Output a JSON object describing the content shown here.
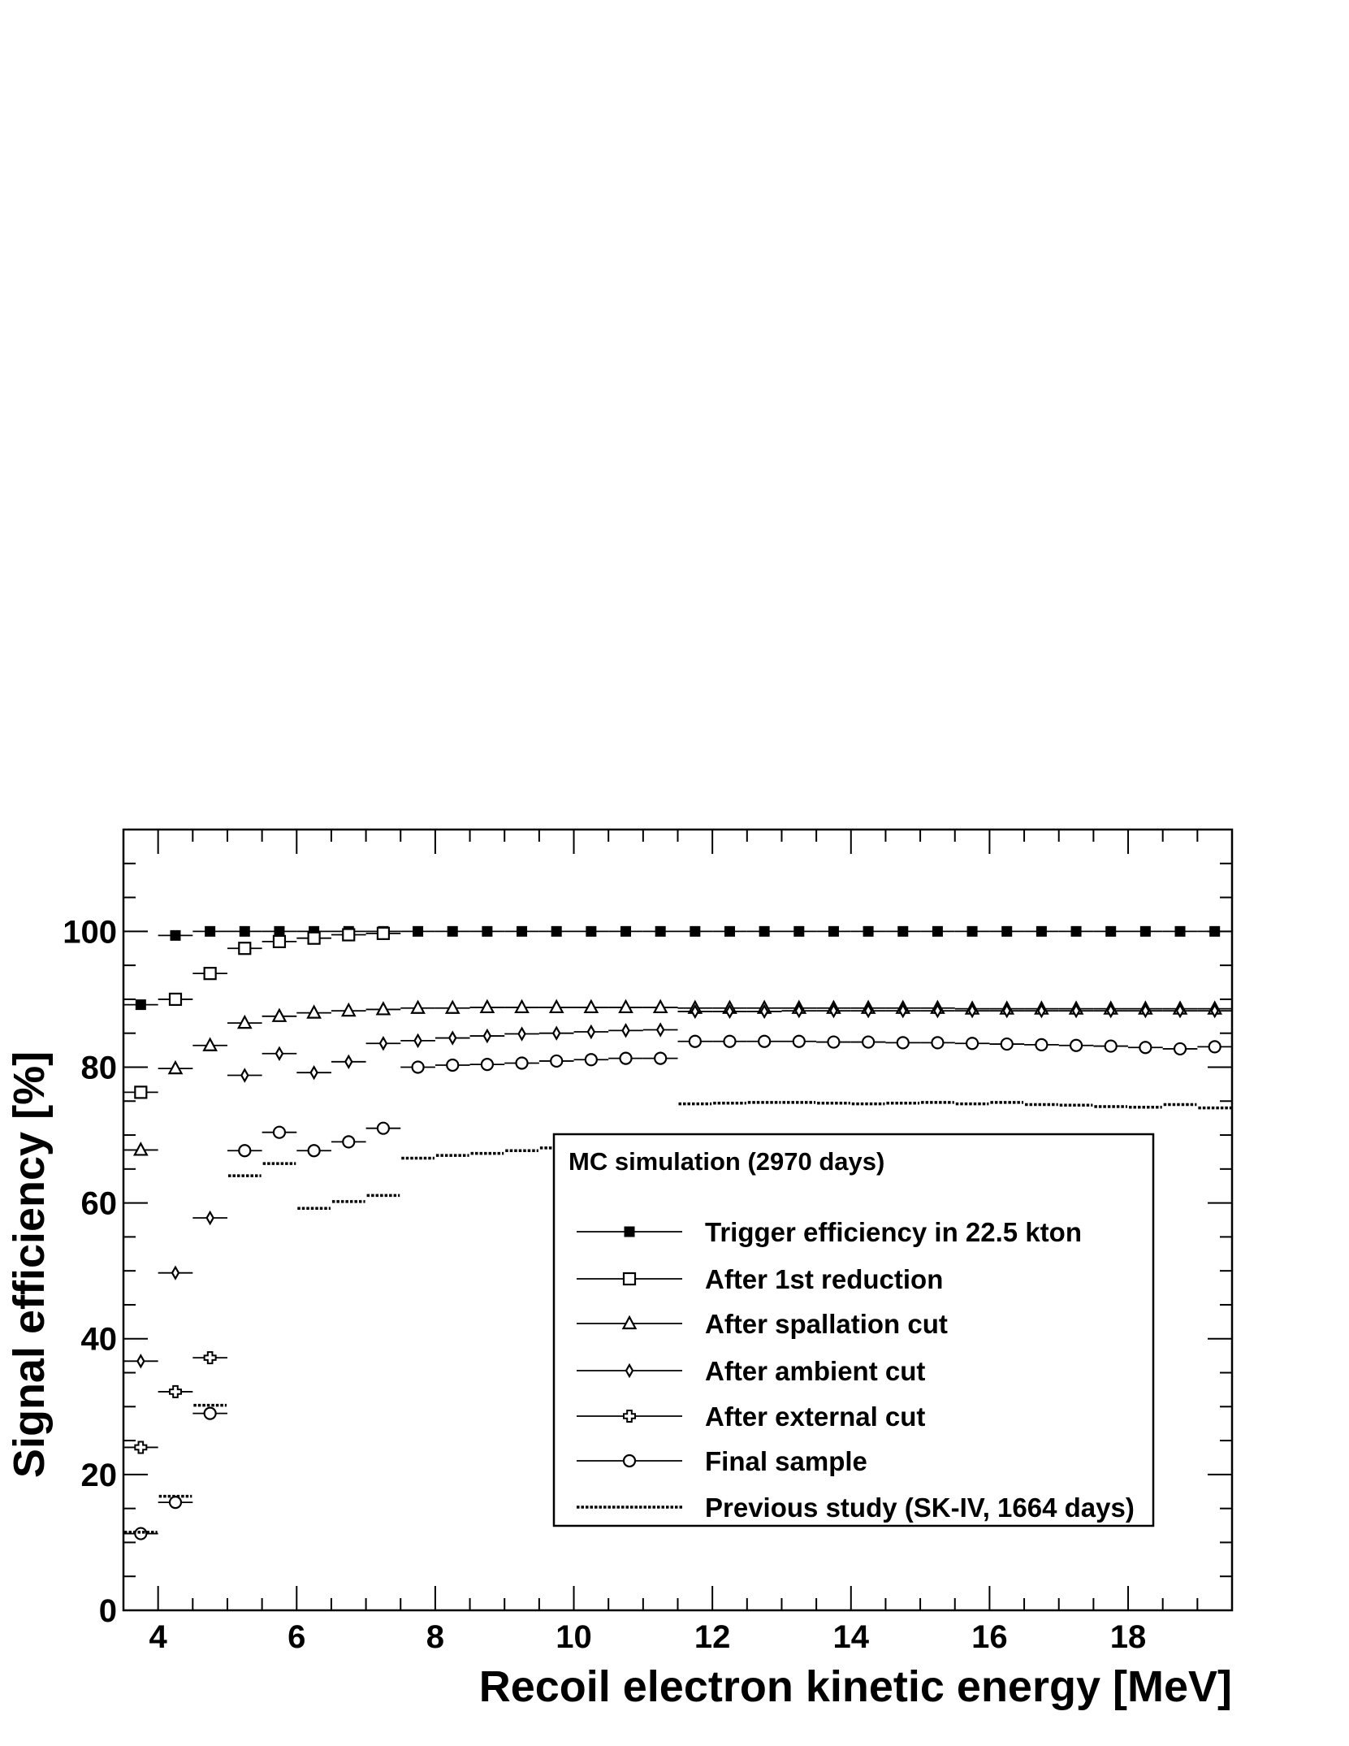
{
  "chart_data": {
    "type": "scatter",
    "xlabel": "Recoil electron kinetic energy [MeV]",
    "ylabel": "Signal efficiency [%]",
    "xlim": [
      3.5,
      19.5
    ],
    "ylim": [
      0,
      115
    ],
    "x_ticks": [
      4,
      6,
      8,
      10,
      12,
      14,
      16,
      18
    ],
    "y_ticks": [
      0,
      20,
      40,
      60,
      80,
      100
    ],
    "grid": false,
    "legend": {
      "title": "MC simulation (2970 days)",
      "placement": "lower-right"
    },
    "series": [
      {
        "name": "Trigger efficiency in 22.5 kton",
        "marker": "filled-square",
        "line": "solid",
        "bins": [
          [
            3.5,
            4.0
          ],
          [
            4.0,
            4.5
          ],
          [
            4.5,
            5.0
          ],
          [
            5.0,
            5.5
          ],
          [
            5.5,
            6.0
          ],
          [
            6.0,
            6.5
          ],
          [
            6.5,
            7.0
          ],
          [
            7.0,
            7.5
          ],
          [
            7.5,
            8.0
          ],
          [
            8.0,
            8.5
          ],
          [
            8.5,
            9.0
          ],
          [
            9.0,
            9.5
          ],
          [
            9.5,
            10.0
          ],
          [
            10.0,
            10.5
          ],
          [
            10.5,
            11.0
          ],
          [
            11.0,
            11.5
          ],
          [
            11.5,
            12.0
          ],
          [
            12.0,
            12.5
          ],
          [
            12.5,
            13.0
          ],
          [
            13.0,
            13.5
          ],
          [
            13.5,
            14.0
          ],
          [
            14.0,
            14.5
          ],
          [
            14.5,
            15.0
          ],
          [
            15.0,
            15.5
          ],
          [
            15.5,
            16.0
          ],
          [
            16.0,
            16.5
          ],
          [
            16.5,
            17.0
          ],
          [
            17.0,
            17.5
          ],
          [
            17.5,
            18.0
          ],
          [
            18.0,
            18.5
          ],
          [
            18.5,
            19.0
          ],
          [
            19.0,
            19.5
          ]
        ],
        "values": [
          89.2,
          99.4,
          100,
          100,
          100,
          100,
          100,
          100,
          100,
          100,
          100,
          100,
          100,
          100,
          100,
          100,
          100,
          100,
          100,
          100,
          100,
          100,
          100,
          100,
          100,
          100,
          100,
          100,
          100,
          100,
          100,
          100
        ]
      },
      {
        "name": "After 1st reduction",
        "marker": "open-square",
        "line": "solid",
        "bins": [
          [
            3.5,
            4.0
          ],
          [
            4.0,
            4.5
          ],
          [
            4.5,
            5.0
          ],
          [
            5.0,
            5.5
          ],
          [
            5.5,
            6.0
          ],
          [
            6.0,
            6.5
          ],
          [
            6.5,
            7.0
          ],
          [
            7.0,
            7.5
          ]
        ],
        "values": [
          76.3,
          90.0,
          93.8,
          97.5,
          98.5,
          99.0,
          99.5,
          99.7
        ]
      },
      {
        "name": "After spallation cut",
        "marker": "open-triangle",
        "line": "solid",
        "bins": [
          [
            3.5,
            4.0
          ],
          [
            4.0,
            4.5
          ],
          [
            4.5,
            5.0
          ],
          [
            5.0,
            5.5
          ],
          [
            5.5,
            6.0
          ],
          [
            6.0,
            6.5
          ],
          [
            6.5,
            7.0
          ],
          [
            7.0,
            7.5
          ],
          [
            7.5,
            8.0
          ],
          [
            8.0,
            8.5
          ],
          [
            8.5,
            9.0
          ],
          [
            9.0,
            9.5
          ],
          [
            9.5,
            10.0
          ],
          [
            10.0,
            10.5
          ],
          [
            10.5,
            11.0
          ],
          [
            11.0,
            11.5
          ],
          [
            11.5,
            12.0
          ],
          [
            12.0,
            12.5
          ],
          [
            12.5,
            13.0
          ],
          [
            13.0,
            13.5
          ],
          [
            13.5,
            14.0
          ],
          [
            14.0,
            14.5
          ],
          [
            14.5,
            15.0
          ],
          [
            15.0,
            15.5
          ],
          [
            15.5,
            16.0
          ],
          [
            16.0,
            16.5
          ],
          [
            16.5,
            17.0
          ],
          [
            17.0,
            17.5
          ],
          [
            17.5,
            18.0
          ],
          [
            18.0,
            18.5
          ],
          [
            18.5,
            19.0
          ],
          [
            19.0,
            19.5
          ]
        ],
        "values": [
          67.8,
          79.8,
          83.2,
          86.5,
          87.5,
          88.0,
          88.3,
          88.5,
          88.7,
          88.7,
          88.8,
          88.8,
          88.8,
          88.8,
          88.8,
          88.8,
          88.7,
          88.7,
          88.7,
          88.7,
          88.7,
          88.7,
          88.7,
          88.7,
          88.6,
          88.6,
          88.6,
          88.6,
          88.6,
          88.6,
          88.6,
          88.6
        ]
      },
      {
        "name": "After ambient cut",
        "marker": "open-diamond",
        "line": "solid",
        "bins": [
          [
            3.5,
            4.0
          ],
          [
            4.0,
            4.5
          ],
          [
            4.5,
            5.0
          ],
          [
            5.0,
            5.5
          ],
          [
            5.5,
            6.0
          ],
          [
            6.0,
            6.5
          ],
          [
            6.5,
            7.0
          ],
          [
            7.0,
            7.5
          ],
          [
            7.5,
            8.0
          ],
          [
            8.0,
            8.5
          ],
          [
            8.5,
            9.0
          ],
          [
            9.0,
            9.5
          ],
          [
            9.5,
            10.0
          ],
          [
            10.0,
            10.5
          ],
          [
            10.5,
            11.0
          ],
          [
            11.0,
            11.5
          ],
          [
            11.5,
            12.0
          ],
          [
            12.0,
            12.5
          ],
          [
            12.5,
            13.0
          ],
          [
            13.0,
            13.5
          ],
          [
            13.5,
            14.0
          ],
          [
            14.0,
            14.5
          ],
          [
            14.5,
            15.0
          ],
          [
            15.0,
            15.5
          ],
          [
            15.5,
            16.0
          ],
          [
            16.0,
            16.5
          ],
          [
            16.5,
            17.0
          ],
          [
            17.0,
            17.5
          ],
          [
            17.5,
            18.0
          ],
          [
            18.0,
            18.5
          ],
          [
            18.5,
            19.0
          ],
          [
            19.0,
            19.5
          ]
        ],
        "values": [
          36.7,
          49.7,
          57.8,
          78.8,
          82.0,
          79.2,
          80.8,
          83.5,
          83.9,
          84.3,
          84.6,
          84.9,
          85.0,
          85.2,
          85.4,
          85.5,
          88.2,
          88.2,
          88.2,
          88.3,
          88.3,
          88.3,
          88.3,
          88.3,
          88.3,
          88.3,
          88.3,
          88.3,
          88.3,
          88.3,
          88.3,
          88.3
        ]
      },
      {
        "name": "After external cut",
        "marker": "open-cross",
        "line": "solid",
        "bins": [
          [
            3.5,
            4.0
          ],
          [
            4.0,
            4.5
          ],
          [
            4.5,
            5.0
          ]
        ],
        "values": [
          24.0,
          32.2,
          37.2
        ]
      },
      {
        "name": "Final sample",
        "marker": "open-circle",
        "line": "solid",
        "bins": [
          [
            3.5,
            4.0
          ],
          [
            4.0,
            4.5
          ],
          [
            4.5,
            5.0
          ],
          [
            5.0,
            5.5
          ],
          [
            5.5,
            6.0
          ],
          [
            6.0,
            6.5
          ],
          [
            6.5,
            7.0
          ],
          [
            7.0,
            7.5
          ],
          [
            7.5,
            8.0
          ],
          [
            8.0,
            8.5
          ],
          [
            8.5,
            9.0
          ],
          [
            9.0,
            9.5
          ],
          [
            9.5,
            10.0
          ],
          [
            10.0,
            10.5
          ],
          [
            10.5,
            11.0
          ],
          [
            11.0,
            11.5
          ],
          [
            11.5,
            12.0
          ],
          [
            12.0,
            12.5
          ],
          [
            12.5,
            13.0
          ],
          [
            13.0,
            13.5
          ],
          [
            13.5,
            14.0
          ],
          [
            14.0,
            14.5
          ],
          [
            14.5,
            15.0
          ],
          [
            15.0,
            15.5
          ],
          [
            15.5,
            16.0
          ],
          [
            16.0,
            16.5
          ],
          [
            16.5,
            17.0
          ],
          [
            17.0,
            17.5
          ],
          [
            17.5,
            18.0
          ],
          [
            18.0,
            18.5
          ],
          [
            18.5,
            19.0
          ],
          [
            19.0,
            19.5
          ]
        ],
        "values": [
          11.3,
          15.9,
          29.0,
          67.7,
          70.4,
          67.7,
          69.0,
          71.0,
          80.0,
          80.3,
          80.4,
          80.6,
          80.9,
          81.1,
          81.3,
          81.3,
          83.8,
          83.8,
          83.8,
          83.8,
          83.7,
          83.7,
          83.6,
          83.6,
          83.5,
          83.4,
          83.3,
          83.2,
          83.1,
          82.9,
          82.7,
          83.0
        ]
      },
      {
        "name": "Previous study (SK-IV, 1664 days)",
        "marker": "none",
        "line": "dotted",
        "bins": [
          [
            3.5,
            4.0
          ],
          [
            4.0,
            4.5
          ],
          [
            4.5,
            5.0
          ],
          [
            5.0,
            5.5
          ],
          [
            5.5,
            6.0
          ],
          [
            6.0,
            6.5
          ],
          [
            6.5,
            7.0
          ],
          [
            7.0,
            7.5
          ],
          [
            7.5,
            8.0
          ],
          [
            8.0,
            8.5
          ],
          [
            8.5,
            9.0
          ],
          [
            9.0,
            9.5
          ],
          [
            9.5,
            10.0
          ],
          [
            10.0,
            10.5
          ],
          [
            10.5,
            11.0
          ],
          [
            11.0,
            11.5
          ],
          [
            11.5,
            12.0
          ],
          [
            12.0,
            12.5
          ],
          [
            12.5,
            13.0
          ],
          [
            13.0,
            13.5
          ],
          [
            13.5,
            14.0
          ],
          [
            14.0,
            14.5
          ],
          [
            14.5,
            15.0
          ],
          [
            15.0,
            15.5
          ],
          [
            15.5,
            16.0
          ],
          [
            16.0,
            16.5
          ],
          [
            16.5,
            17.0
          ],
          [
            17.0,
            17.5
          ],
          [
            17.5,
            18.0
          ],
          [
            18.0,
            18.5
          ],
          [
            18.5,
            19.0
          ],
          [
            19.0,
            19.5
          ]
        ],
        "values": [
          11.5,
          16.8,
          30.2,
          64.0,
          65.8,
          59.2,
          60.2,
          61.1,
          66.6,
          67.0,
          67.3,
          67.7,
          68.1,
          68.5,
          68.8,
          69.0,
          74.6,
          74.7,
          74.8,
          74.8,
          74.7,
          74.6,
          74.7,
          74.8,
          74.6,
          74.8,
          74.5,
          74.4,
          74.2,
          74.1,
          74.5,
          74.0
        ]
      }
    ]
  }
}
